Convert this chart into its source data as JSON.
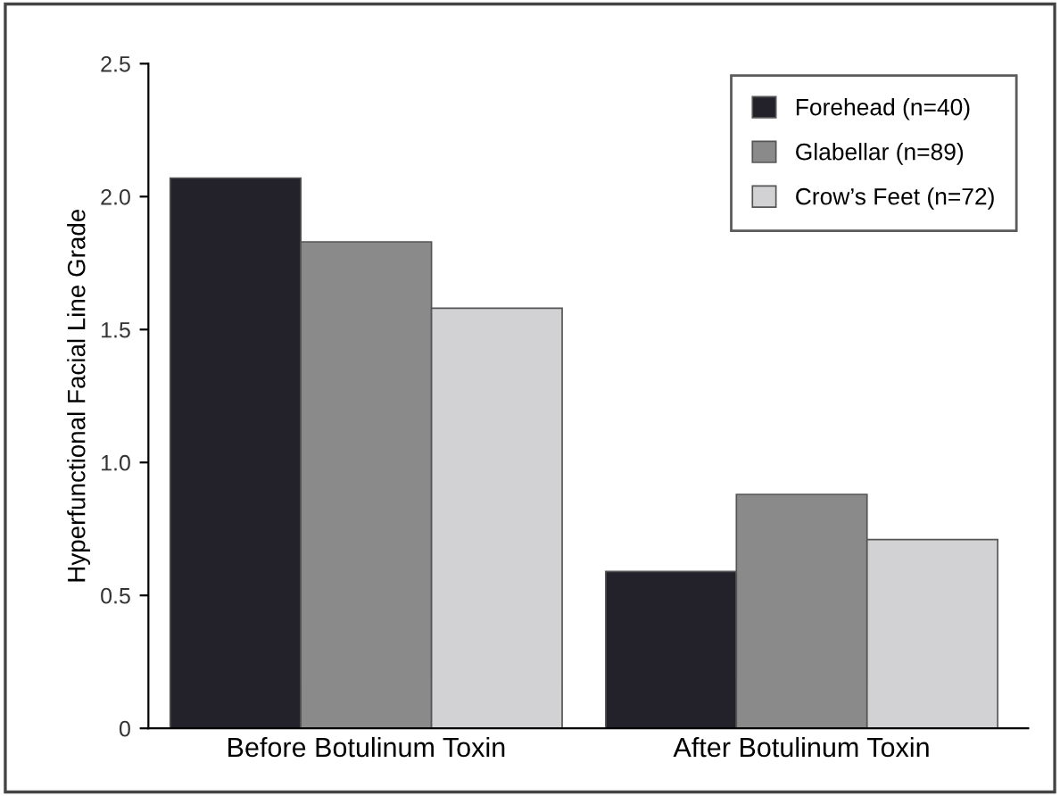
{
  "chart_data": {
    "type": "bar",
    "ylabel": "Hyperfunctional Facial Line Grade",
    "categories": [
      "Before Botulinum Toxin",
      "After Botulinum Toxin"
    ],
    "series": [
      {
        "name": "Forehead (n=40)",
        "color": "#23222a",
        "values": [
          2.07,
          0.59
        ]
      },
      {
        "name": "Glabellar (n=89)",
        "color": "#8a8a8a",
        "values": [
          1.83,
          0.88
        ]
      },
      {
        "name": "Crow’s Feet (n=72)",
        "color": "#d2d2d4",
        "values": [
          1.58,
          0.71
        ]
      }
    ],
    "ylim": [
      0,
      2.5
    ],
    "yticks": [
      0,
      {
        "value": 0.5,
        "label": "0.5"
      },
      {
        "value": 1,
        "label": "1.0"
      },
      {
        "value": 1.5,
        "label": "1.5"
      },
      {
        "value": 2,
        "label": "2.0"
      },
      {
        "value": 2.5,
        "label": "2.5"
      }
    ],
    "grid": false,
    "legend": "top right"
  }
}
